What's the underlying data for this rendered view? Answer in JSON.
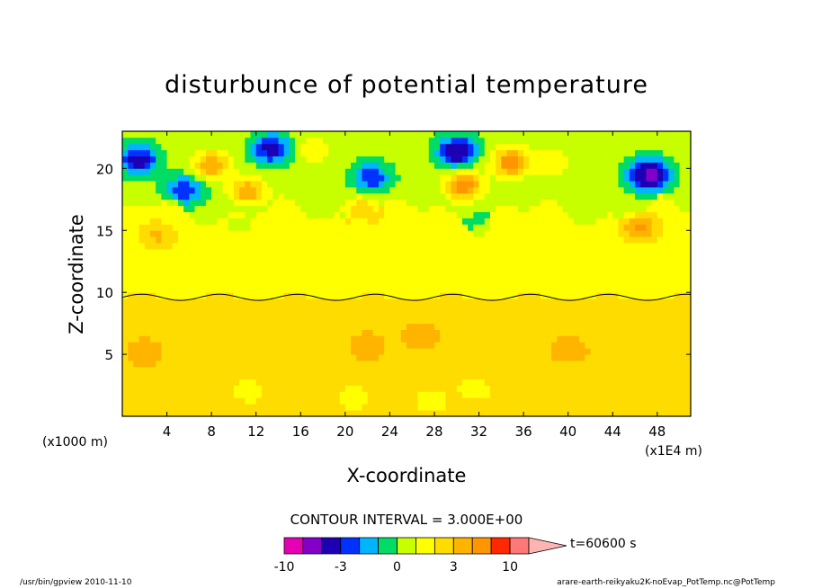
{
  "chart_data": {
    "type": "heatmap",
    "title": "disturbunce of potential temperature",
    "xlabel": "X-coordinate",
    "ylabel": "Z-coordinate",
    "x_unit_label": "(x1E4 m)",
    "y_unit_label": "(x1000 m)",
    "x_ticks": [
      "4",
      "8",
      "12",
      "16",
      "20",
      "24",
      "28",
      "32",
      "36",
      "40",
      "44",
      "48"
    ],
    "x_tick_values": [
      4,
      8,
      12,
      16,
      20,
      24,
      28,
      32,
      36,
      40,
      44,
      48
    ],
    "y_ticks": [
      "5",
      "10",
      "15",
      "20"
    ],
    "y_tick_values": [
      5,
      10,
      15,
      20
    ],
    "xlim": [
      0,
      51
    ],
    "ylim": [
      0,
      23
    ],
    "contour_interval": "CONTOUR INTERVAL = 3.000E+00",
    "time_label": "t=60600 s",
    "colorbar": {
      "labels": [
        "-10",
        "-3",
        "0",
        "3",
        "10"
      ],
      "label_levels": [
        -10,
        -3,
        0,
        3,
        10
      ],
      "levels": [
        -10,
        -7,
        -4,
        -3,
        -2,
        -1,
        0,
        1,
        2,
        3,
        4,
        7,
        10
      ],
      "colors": [
        "#e600b4",
        "#8200c8",
        "#1e00b4",
        "#0032ff",
        "#00b4ff",
        "#00dc64",
        "#c8ff00",
        "#ffff00",
        "#ffdc00",
        "#ffb400",
        "#ff9600",
        "#ff2800",
        "#ff7878",
        "#ffb4b4"
      ],
      "bounds": [
        -10,
        10
      ]
    },
    "fields": {
      "base_lower": 1.5,
      "base_upper": 0.5,
      "interface_z": 9.6,
      "upper_green_band": [
        16.5,
        23
      ]
    },
    "features": [
      {
        "x": 2,
        "z": 5.2,
        "value": 3
      },
      {
        "x": 26.8,
        "z": 6.5,
        "value": 3
      },
      {
        "x": 22,
        "z": 5.7,
        "value": 3
      },
      {
        "x": 40.1,
        "z": 5.4,
        "value": 3
      },
      {
        "x": 31.6,
        "z": 2.2,
        "value": 0.5
      },
      {
        "x": 11.3,
        "z": 2.1,
        "value": 0.5
      },
      {
        "x": 27.8,
        "z": 1.3,
        "value": 0.5
      },
      {
        "x": 20.9,
        "z": 1.5,
        "value": 0.5
      },
      {
        "x": 5.6,
        "z": 18.3,
        "value": -4
      },
      {
        "x": 1.5,
        "z": 20.7,
        "value": -5
      },
      {
        "x": 13.4,
        "z": 21.6,
        "value": -5
      },
      {
        "x": 30.1,
        "z": 21.4,
        "value": -6
      },
      {
        "x": 22.3,
        "z": 19.3,
        "value": -4
      },
      {
        "x": 47.3,
        "z": 19.5,
        "value": -8
      },
      {
        "x": 8,
        "z": 20.3,
        "value": 3
      },
      {
        "x": 11.3,
        "z": 18.2,
        "value": 3
      },
      {
        "x": 30.6,
        "z": 18.6,
        "value": 4
      },
      {
        "x": 34.9,
        "z": 20.5,
        "value": 4
      },
      {
        "x": 21.6,
        "z": 16.7,
        "value": 2
      },
      {
        "x": 46.4,
        "z": 15.3,
        "value": 2
      },
      {
        "x": 3.1,
        "z": 14.6,
        "value": 1
      },
      {
        "x": 38.5,
        "z": 20.6,
        "value": 1
      },
      {
        "x": 17.2,
        "z": 21.5,
        "value": 1
      },
      {
        "x": 10.5,
        "z": 15.6,
        "value": -1.5
      },
      {
        "x": 32.1,
        "z": 15.4,
        "value": -1.5
      },
      {
        "x": 16.5,
        "z": 15.2,
        "value": -1
      }
    ]
  },
  "footer": {
    "left": "/usr/bin/gpview  2010-11-10",
    "right": "arare-earth-reikyaku2K-noEvap_PotTemp.nc@PotTemp"
  }
}
